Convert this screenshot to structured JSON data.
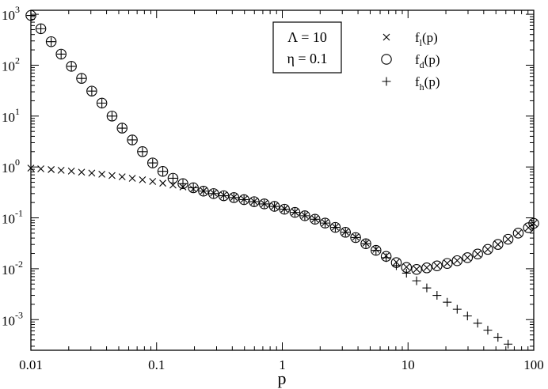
{
  "chart_data": {
    "type": "scatter",
    "x_scale": "log",
    "y_scale": "log",
    "xlim": [
      0.01,
      100
    ],
    "ylim": [
      0.00025,
      1200
    ],
    "xlabel": "p",
    "ylabel": "",
    "title": "",
    "grid": false,
    "legend_position": "top-right",
    "x_ticks": [
      {
        "value": 0.01,
        "label": "0.01"
      },
      {
        "value": 0.1,
        "label": "0.1"
      },
      {
        "value": 1,
        "label": "1"
      },
      {
        "value": 10,
        "label": "10"
      },
      {
        "value": 100,
        "label": "100"
      }
    ],
    "y_ticks": [
      {
        "value": 0.001,
        "base": "10",
        "exp": "-3"
      },
      {
        "value": 0.01,
        "base": "10",
        "exp": "-2"
      },
      {
        "value": 0.1,
        "base": "10",
        "exp": "-1"
      },
      {
        "value": 1,
        "base": "10",
        "exp": "0"
      },
      {
        "value": 10,
        "base": "10",
        "exp": "1"
      },
      {
        "value": 100,
        "base": "10",
        "exp": "2"
      },
      {
        "value": 1000,
        "base": "10",
        "exp": "3"
      }
    ],
    "annotation": {
      "line1": "Λ = 10",
      "line2": "η = 0.1"
    },
    "series": [
      {
        "name": "f_l(p)",
        "label_main": "f",
        "label_sub": "l",
        "label_tail": "(p)",
        "marker": "x",
        "points": [
          [
            0.01,
            0.95
          ],
          [
            0.012,
            0.92
          ],
          [
            0.0145,
            0.89
          ],
          [
            0.0174,
            0.86
          ],
          [
            0.021,
            0.83
          ],
          [
            0.0253,
            0.79
          ],
          [
            0.0305,
            0.76
          ],
          [
            0.0367,
            0.72
          ],
          [
            0.0442,
            0.68
          ],
          [
            0.0532,
            0.64
          ],
          [
            0.0641,
            0.6
          ],
          [
            0.0772,
            0.56
          ],
          [
            0.093,
            0.52
          ],
          [
            0.112,
            0.48
          ],
          [
            0.135,
            0.44
          ],
          [
            0.162,
            0.405
          ],
          [
            0.196,
            0.37
          ],
          [
            0.236,
            0.338
          ],
          [
            0.284,
            0.308
          ],
          [
            0.342,
            0.28
          ],
          [
            0.412,
            0.255
          ],
          [
            0.496,
            0.232
          ],
          [
            0.597,
            0.21
          ],
          [
            0.719,
            0.19
          ],
          [
            0.866,
            0.17
          ],
          [
            1.04,
            0.15
          ],
          [
            1.26,
            0.13
          ],
          [
            1.51,
            0.112
          ],
          [
            1.82,
            0.095
          ],
          [
            2.19,
            0.08
          ],
          [
            2.64,
            0.066
          ],
          [
            3.18,
            0.053
          ],
          [
            3.83,
            0.042
          ],
          [
            4.62,
            0.032
          ],
          [
            5.56,
            0.024
          ],
          [
            6.7,
            0.018
          ],
          [
            8.07,
            0.0135
          ],
          [
            9.72,
            0.0108
          ],
          [
            11.7,
            0.0098
          ],
          [
            14.1,
            0.0105
          ],
          [
            17.0,
            0.0115
          ],
          [
            20.5,
            0.0128
          ],
          [
            24.6,
            0.0145
          ],
          [
            29.7,
            0.0165
          ],
          [
            35.8,
            0.0195
          ],
          [
            43.1,
            0.024
          ],
          [
            51.9,
            0.03
          ],
          [
            62.5,
            0.038
          ],
          [
            75.3,
            0.05
          ],
          [
            90.7,
            0.064
          ],
          [
            100,
            0.078
          ]
        ]
      },
      {
        "name": "f_d(p)",
        "label_main": "f",
        "label_sub": "d",
        "label_tail": "(p)",
        "marker": "circle",
        "points": [
          [
            0.01,
            950
          ],
          [
            0.012,
            520
          ],
          [
            0.0145,
            290
          ],
          [
            0.0174,
            165
          ],
          [
            0.021,
            95
          ],
          [
            0.0253,
            55
          ],
          [
            0.0305,
            31
          ],
          [
            0.0367,
            18
          ],
          [
            0.0442,
            10
          ],
          [
            0.0532,
            5.8
          ],
          [
            0.0641,
            3.4
          ],
          [
            0.0772,
            2.0
          ],
          [
            0.093,
            1.2
          ],
          [
            0.112,
            0.82
          ],
          [
            0.135,
            0.6
          ],
          [
            0.162,
            0.47
          ],
          [
            0.196,
            0.39
          ],
          [
            0.236,
            0.335
          ],
          [
            0.284,
            0.3
          ],
          [
            0.342,
            0.272
          ],
          [
            0.412,
            0.25
          ],
          [
            0.496,
            0.228
          ],
          [
            0.597,
            0.208
          ],
          [
            0.719,
            0.188
          ],
          [
            0.866,
            0.168
          ],
          [
            1.04,
            0.148
          ],
          [
            1.26,
            0.128
          ],
          [
            1.51,
            0.11
          ],
          [
            1.82,
            0.094
          ],
          [
            2.19,
            0.079
          ],
          [
            2.64,
            0.065
          ],
          [
            3.18,
            0.052
          ],
          [
            3.83,
            0.041
          ],
          [
            4.62,
            0.031
          ],
          [
            5.56,
            0.023
          ],
          [
            6.7,
            0.0175
          ],
          [
            8.07,
            0.0132
          ],
          [
            9.72,
            0.0106
          ],
          [
            11.7,
            0.0097
          ],
          [
            14.1,
            0.0104
          ],
          [
            17.0,
            0.0114
          ],
          [
            20.5,
            0.0127
          ],
          [
            24.6,
            0.0144
          ],
          [
            29.7,
            0.0165
          ],
          [
            35.8,
            0.0195
          ],
          [
            43.1,
            0.024
          ],
          [
            51.9,
            0.03
          ],
          [
            62.5,
            0.038
          ],
          [
            75.3,
            0.05
          ],
          [
            90.7,
            0.064
          ],
          [
            100,
            0.078
          ]
        ]
      },
      {
        "name": "f_h(p)",
        "label_main": "f",
        "label_sub": "h",
        "label_tail": "(p)",
        "marker": "plus",
        "points": [
          [
            0.01,
            950
          ],
          [
            0.012,
            520
          ],
          [
            0.0145,
            290
          ],
          [
            0.0174,
            165
          ],
          [
            0.021,
            95
          ],
          [
            0.0253,
            55
          ],
          [
            0.0305,
            31
          ],
          [
            0.0367,
            18
          ],
          [
            0.0442,
            10
          ],
          [
            0.0532,
            5.8
          ],
          [
            0.0641,
            3.4
          ],
          [
            0.0772,
            2.0
          ],
          [
            0.093,
            1.2
          ],
          [
            0.112,
            0.82
          ],
          [
            0.135,
            0.6
          ],
          [
            0.162,
            0.47
          ],
          [
            0.196,
            0.39
          ],
          [
            0.236,
            0.335
          ],
          [
            0.284,
            0.3
          ],
          [
            0.342,
            0.272
          ],
          [
            0.412,
            0.25
          ],
          [
            0.496,
            0.228
          ],
          [
            0.597,
            0.208
          ],
          [
            0.719,
            0.188
          ],
          [
            0.866,
            0.168
          ],
          [
            1.04,
            0.148
          ],
          [
            1.26,
            0.128
          ],
          [
            1.51,
            0.11
          ],
          [
            1.82,
            0.094
          ],
          [
            2.19,
            0.079
          ],
          [
            2.64,
            0.065
          ],
          [
            3.18,
            0.052
          ],
          [
            3.83,
            0.041
          ],
          [
            4.62,
            0.031
          ],
          [
            5.56,
            0.023
          ],
          [
            6.7,
            0.0165
          ],
          [
            8.07,
            0.0115
          ],
          [
            9.72,
            0.0082
          ],
          [
            11.7,
            0.0058
          ],
          [
            14.1,
            0.0042
          ],
          [
            17.0,
            0.003
          ],
          [
            20.5,
            0.0022
          ],
          [
            24.6,
            0.0016
          ],
          [
            29.7,
            0.00118
          ],
          [
            35.8,
            0.00085
          ],
          [
            43.1,
            0.00062
          ],
          [
            51.9,
            0.00045
          ],
          [
            62.5,
            0.00033
          ]
        ]
      }
    ]
  }
}
